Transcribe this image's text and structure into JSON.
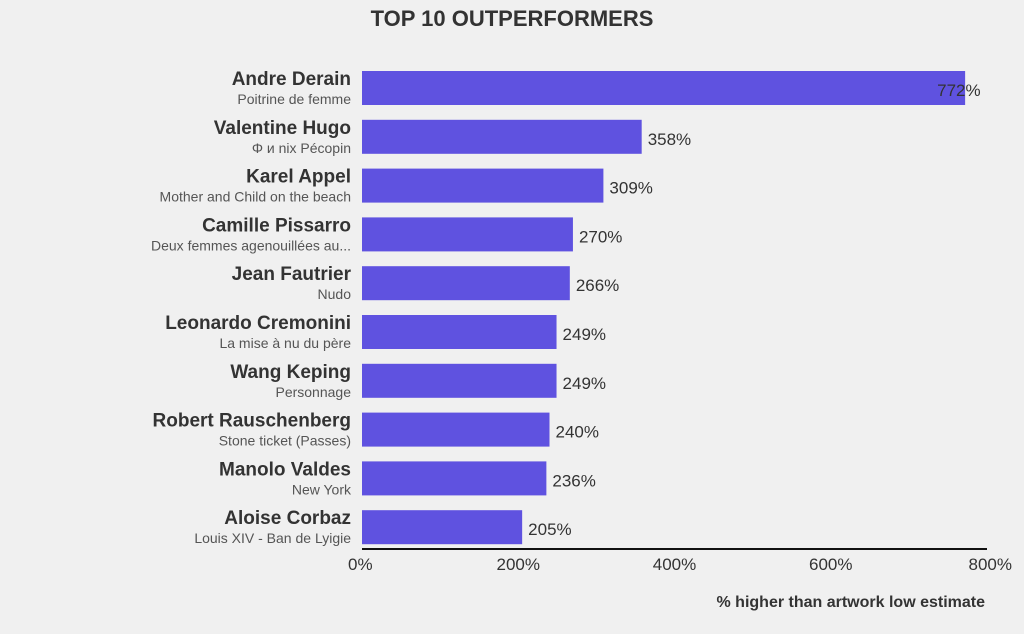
{
  "chart_data": {
    "type": "bar",
    "orientation": "horizontal",
    "title": "TOP 10 OUTPERFORMERS",
    "xlabel": "% higher than artwork low estimate",
    "ylabel": "",
    "xlim": [
      0,
      800
    ],
    "x_ticks": [
      0,
      200,
      400,
      600,
      800
    ],
    "x_tick_labels": [
      "0%",
      "200%",
      "400%",
      "600%",
      "800%"
    ],
    "value_suffix": "%",
    "grid": false,
    "bar_color": "#5f52e0",
    "bars": [
      {
        "artist": "Andre Derain",
        "artwork": "Poitrine de femme",
        "value": 772
      },
      {
        "artist": "Valentine Hugo",
        "artwork": "Φ и nix Pécopin",
        "value": 358
      },
      {
        "artist": "Karel Appel",
        "artwork": "Mother and Child on the beach",
        "value": 309
      },
      {
        "artist": "Camille Pissarro",
        "artwork": "Deux femmes agenouillées au...",
        "value": 270
      },
      {
        "artist": "Jean Fautrier",
        "artwork": "Nudo",
        "value": 266
      },
      {
        "artist": "Leonardo Cremonini",
        "artwork": "La mise à nu du père",
        "value": 249
      },
      {
        "artist": "Wang Keping",
        "artwork": "Personnage",
        "value": 249
      },
      {
        "artist": "Robert Rauschenberg",
        "artwork": "Stone ticket (Passes)",
        "value": 240
      },
      {
        "artist": "Manolo Valdes",
        "artwork": "New York",
        "value": 236
      },
      {
        "artist": "Aloise Corbaz",
        "artwork": "Louis XIV - Ban de Lyigie",
        "value": 205
      }
    ]
  }
}
